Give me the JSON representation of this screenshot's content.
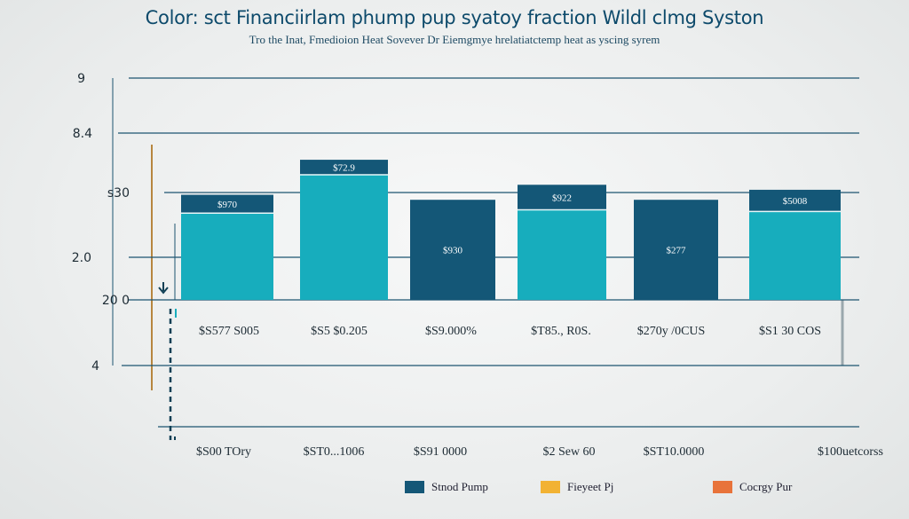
{
  "chart_data": {
    "type": "bar",
    "title": "Color: sct Financiirlam phump pup syatoy fraction Wildl clmg Syston",
    "subtitle": "Tro the Inat, Fmedioion Heat Sovever Dr Eiemgmye hrelatiatctemp heat as yscing syrem",
    "y_ticks": [
      "9",
      "8.4",
      "s30",
      "2.0",
      "20 0",
      "4"
    ],
    "categories": [
      "$S577 S005",
      "$S5 $0.205",
      "$S9.000%",
      "$T85., R0S.",
      "$270y /0CUS",
      "$S1 30 COS"
    ],
    "bottom_labels": [
      "$S00 TOry",
      "$ST0...1006",
      "$S91 0000",
      "$2 Sew 60",
      "$ST10.0000",
      "$100uetcorss"
    ],
    "series": [
      {
        "name": "Stnod Pump",
        "values": [
          63,
          84,
          60,
          69,
          60,
          66
        ]
      },
      {
        "name": "Fieyeet Pj",
        "values": [
          52,
          75,
          0,
          54,
          0,
          53
        ]
      }
    ],
    "bar_labels": [
      "$970",
      "$72.9",
      "$930",
      "$922",
      "$277",
      "$5008"
    ],
    "ylim": [
      0,
      100
    ],
    "legend_position": "bottom"
  },
  "legend": {
    "items": [
      {
        "label": "Stnod Pump",
        "color": "#145777"
      },
      {
        "label": "Fieyeet Pj",
        "color": "#f2b233"
      },
      {
        "label": "Cocrgy Pur",
        "color": "#e8733a"
      }
    ]
  },
  "colors": {
    "dark_bar": "#145777",
    "light_bar": "#17adbd",
    "grid": "#1c5470",
    "axis_accent": "#b7863f",
    "dashed": "#0f3f55"
  }
}
